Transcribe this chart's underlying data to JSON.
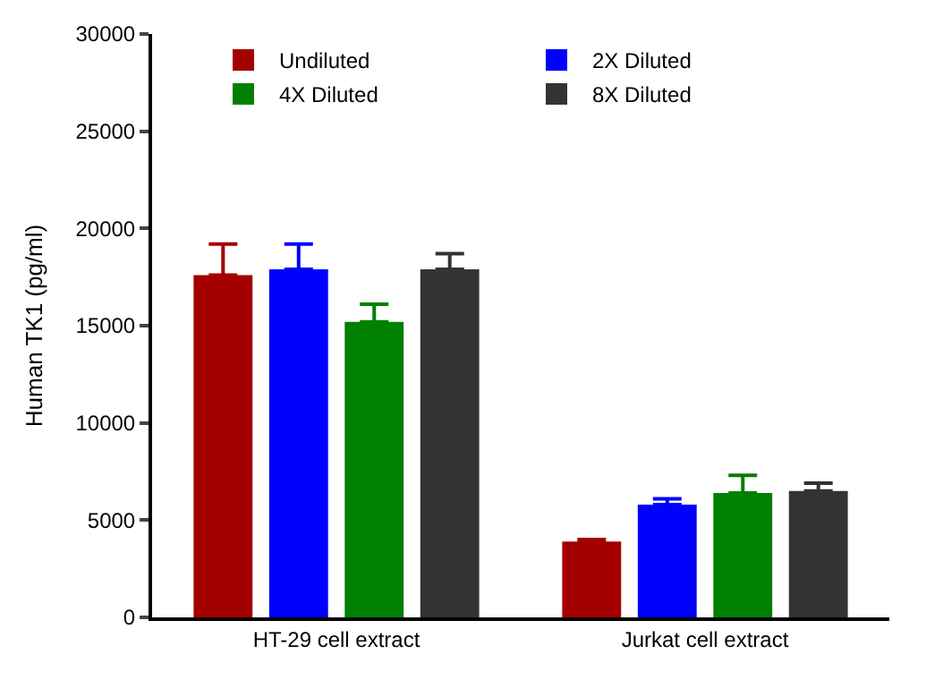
{
  "chart_data": {
    "type": "bar",
    "ylabel": "Human TK1 (pg/ml)",
    "categories": [
      "HT-29 cell extract",
      "Jurkat cell extract"
    ],
    "series": [
      {
        "name": "Undiluted",
        "color": "#a50000",
        "values": [
          17600,
          3900
        ],
        "errors": [
          [
            17600,
            19200
          ],
          [
            3900,
            4000
          ]
        ]
      },
      {
        "name": "2X Diluted",
        "color": "#0000ff",
        "values": [
          17900,
          5800
        ],
        "errors": [
          [
            17900,
            19200
          ],
          [
            5800,
            6100
          ]
        ]
      },
      {
        "name": "4X Diluted",
        "color": "#008000",
        "values": [
          15200,
          6400
        ],
        "errors": [
          [
            15200,
            16100
          ],
          [
            6400,
            7300
          ]
        ]
      },
      {
        "name": "8X Diluted",
        "color": "#333333",
        "values": [
          17900,
          6500
        ],
        "errors": [
          [
            17900,
            18700
          ],
          [
            6500,
            6900
          ]
        ]
      }
    ],
    "ylim": [
      0,
      30000
    ],
    "yticks": [
      0,
      5000,
      10000,
      15000,
      20000,
      25000,
      30000
    ],
    "legend": "top"
  }
}
